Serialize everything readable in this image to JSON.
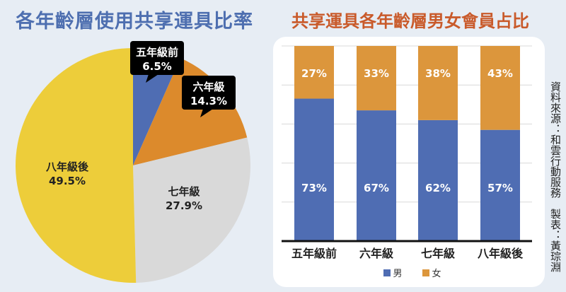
{
  "chart_data": [
    {
      "type": "pie",
      "title": "各年齡層使用共享運具比率",
      "slices": [
        {
          "label": "五年級前",
          "value": 6.5,
          "display": "6.5%",
          "color": "#4f6db3"
        },
        {
          "label": "六年級",
          "value": 14.3,
          "display": "14.3%",
          "color": "#dc8a2c"
        },
        {
          "label": "七年級",
          "value": 27.9,
          "display": "27.9%",
          "color": "#d9d9d9"
        },
        {
          "label": "八年級後",
          "value": 49.5,
          "display": "49.5%",
          "color": "#edcd3a"
        }
      ]
    },
    {
      "type": "bar",
      "stacked": true,
      "title": "共享運具各年齡層男女會員占比",
      "categories": [
        "五年級前",
        "六年級",
        "七年級",
        "八年級後"
      ],
      "ylim": [
        0,
        100
      ],
      "grid": true,
      "legend": "bottom",
      "series": [
        {
          "name": "男",
          "values": [
            73,
            67,
            62,
            57
          ],
          "labels": [
            "73%",
            "67%",
            "62%",
            "57%"
          ],
          "color": "#4f6db3"
        },
        {
          "name": "女",
          "values": [
            27,
            33,
            38,
            43
          ],
          "labels": [
            "27%",
            "33%",
            "38%",
            "43%"
          ],
          "color": "#dc963c"
        }
      ]
    }
  ],
  "source": "資料來源：和雲行動服務　製表：黃琮淵"
}
